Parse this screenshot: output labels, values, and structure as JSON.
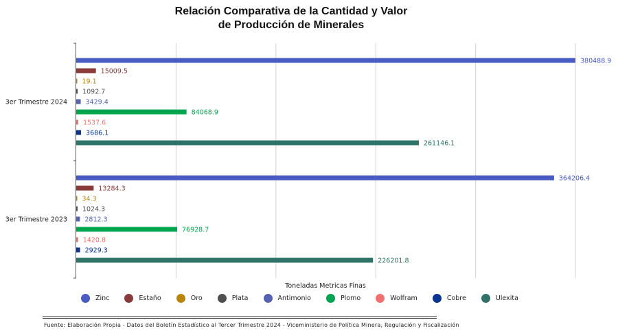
{
  "title_line1": "Relación Comparativa de la Cantidad y Valor",
  "title_line2": "de Producción de Minerales",
  "xlabel": "Toneladas Metricas Finas",
  "source": "Fuente: Elaboración Propia - Datos del Boletín Estadístico al Tercer Trimestre 2024 - Viceministerio de Política Minera, Regulación y Fiscalización",
  "chart_data": {
    "type": "bar",
    "orientation": "horizontal",
    "title": "Relación Comparativa de la Cantidad y Valor de Producción de Minerales",
    "xlabel": "Toneladas Metricas Finas",
    "ylabel": "",
    "categories": [
      "3er Trimestre 2024",
      "3er Trimestre 2023"
    ],
    "xlim": [
      0,
      380488.9
    ],
    "grid": true,
    "legend_position": "bottom",
    "series": [
      {
        "name": "Zinc",
        "color": "#4a5bc4",
        "values": [
          380488.9,
          364206.4
        ]
      },
      {
        "name": "Estaño",
        "color": "#8b3a3a",
        "values": [
          15009.5,
          13284.3
        ]
      },
      {
        "name": "Oro",
        "color": "#b8860b",
        "values": [
          19.1,
          34.3
        ]
      },
      {
        "name": "Plata",
        "color": "#505050",
        "values": [
          1092.7,
          1024.3
        ]
      },
      {
        "name": "Antimonio",
        "color": "#5563b0",
        "values": [
          3429.4,
          2812.3
        ]
      },
      {
        "name": "Plomo",
        "color": "#00a550",
        "values": [
          84068.9,
          76928.7
        ]
      },
      {
        "name": "Wolfram",
        "color": "#f07070",
        "values": [
          1537.6,
          1420.8
        ]
      },
      {
        "name": "Cobre",
        "color": "#0a3590",
        "values": [
          3686.1,
          2929.3
        ]
      },
      {
        "name": "Ulexita",
        "color": "#2e7268",
        "values": [
          261146.1,
          226201.8
        ]
      }
    ]
  }
}
